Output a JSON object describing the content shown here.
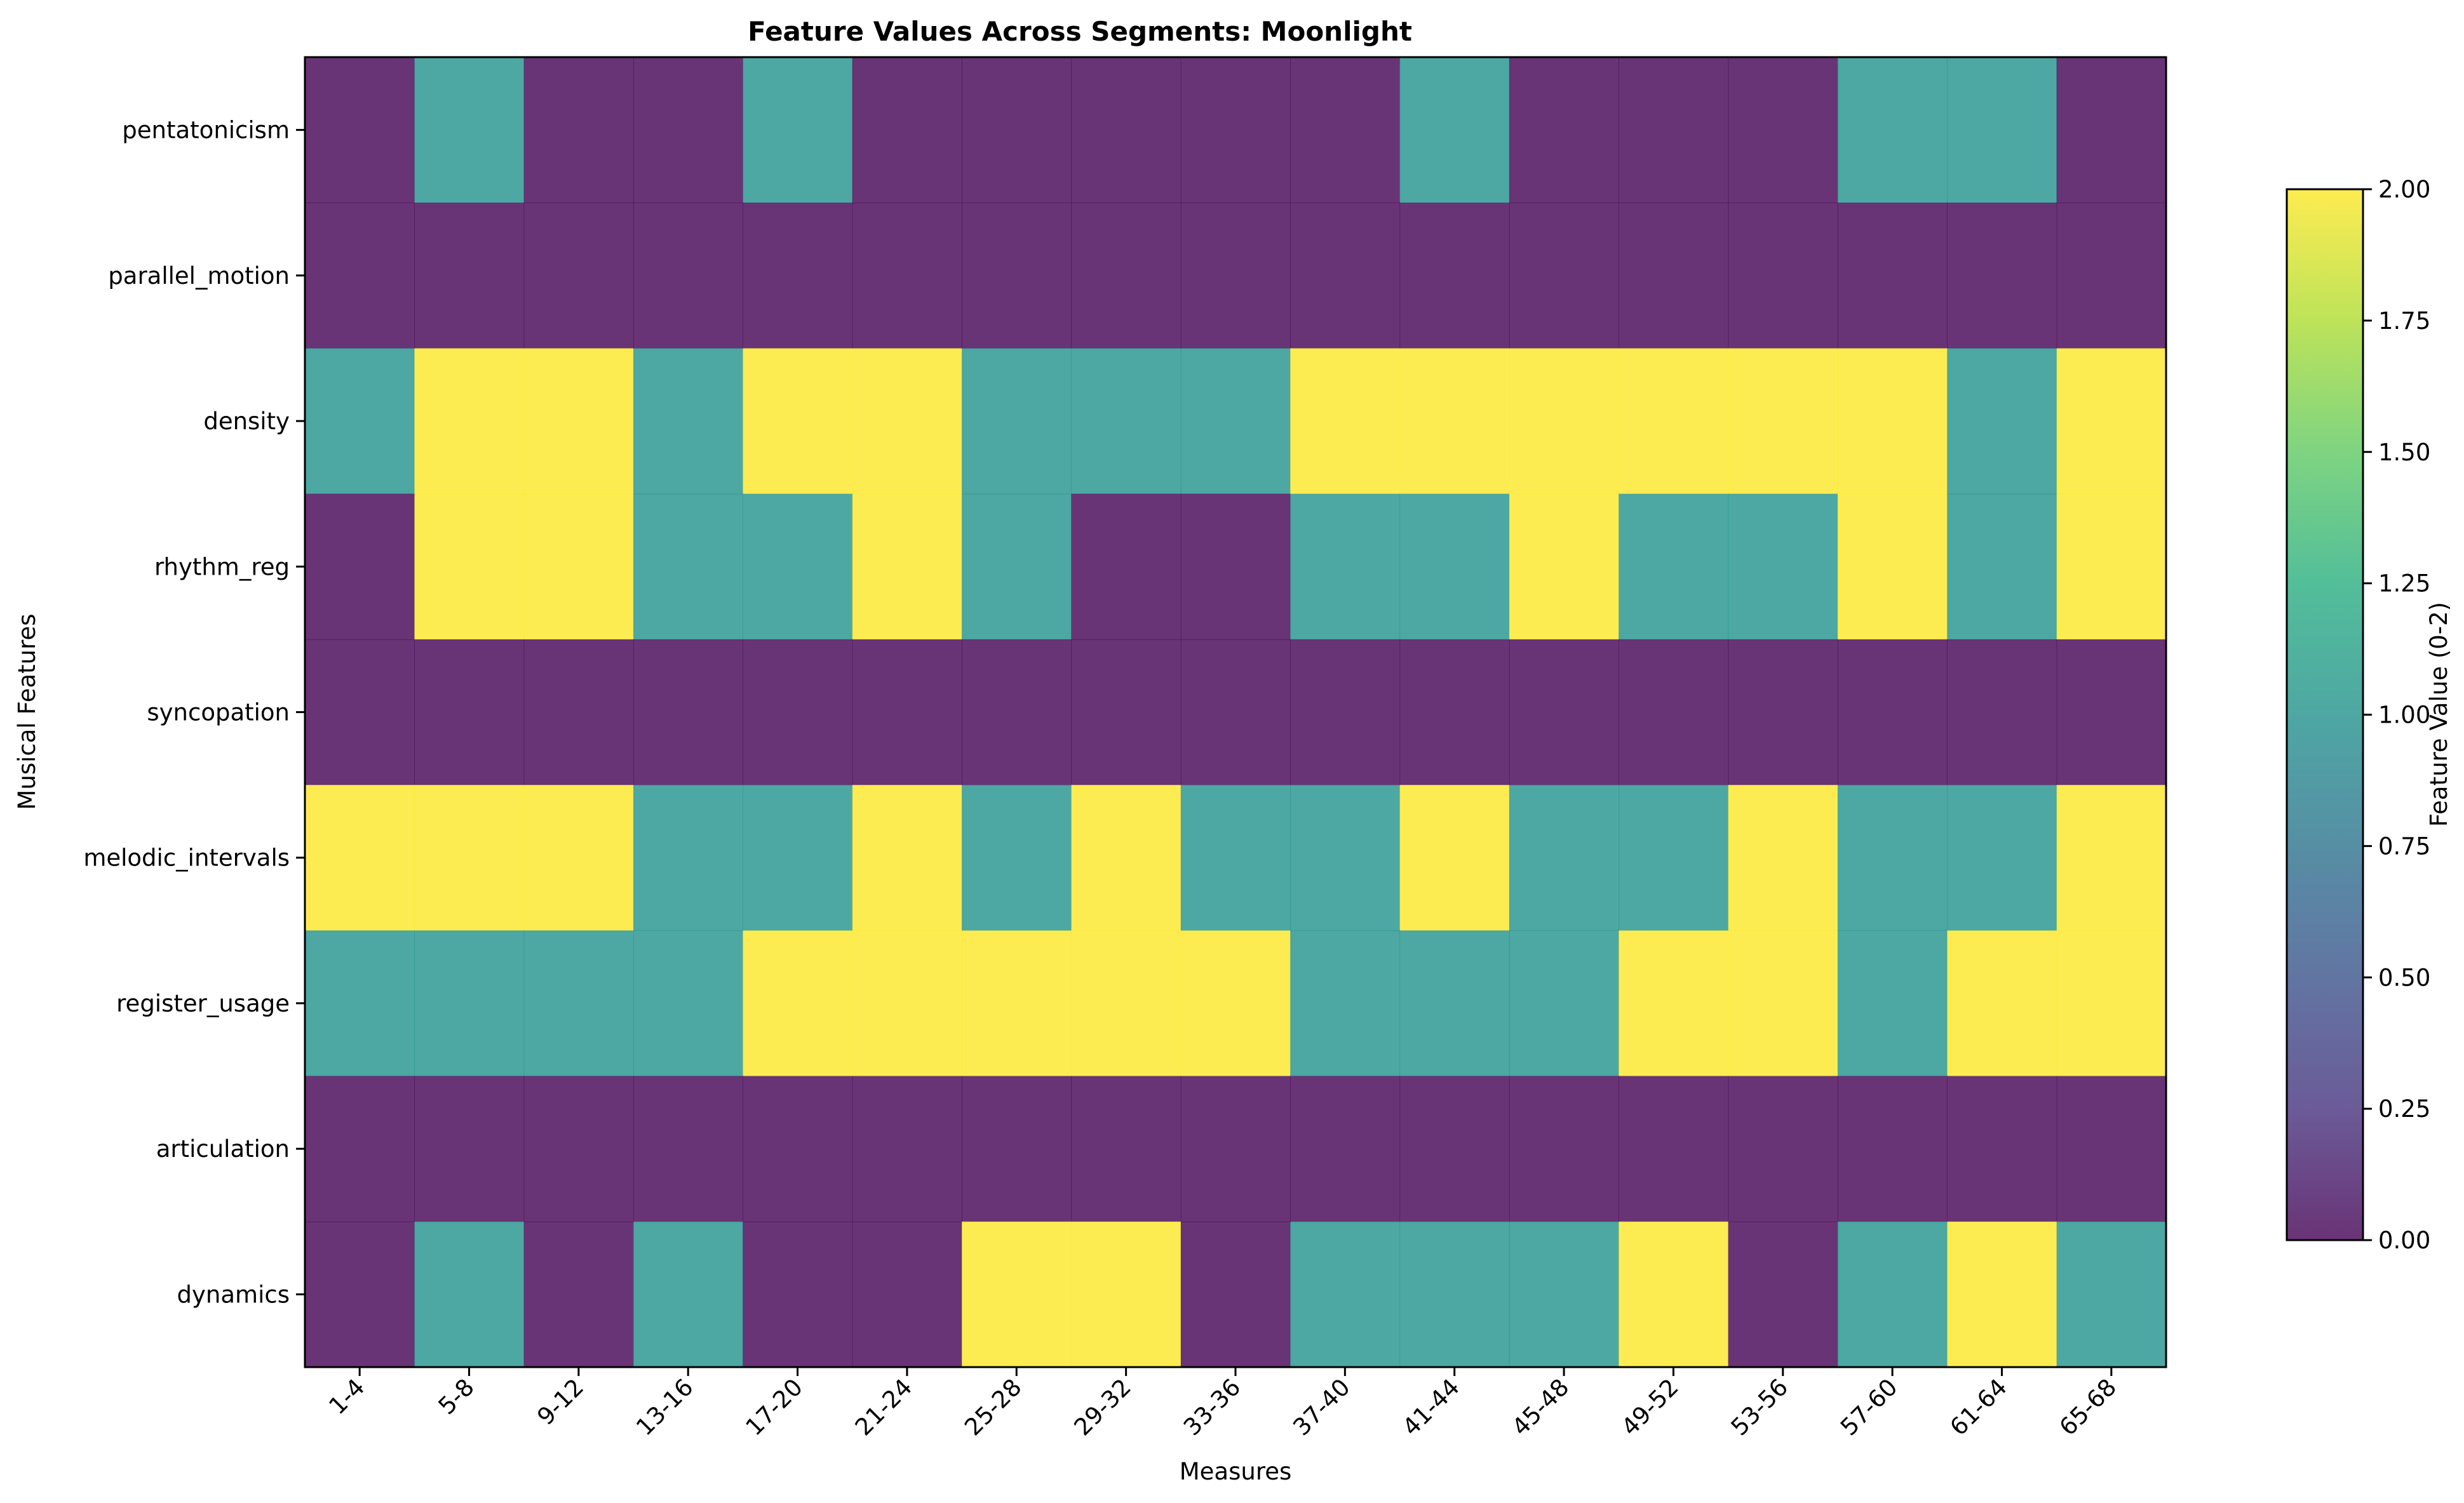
{
  "chart_data": {
    "type": "heatmap",
    "title": "Feature Values Across Segments: Moonlight",
    "xlabel": "Measures",
    "ylabel": "Musical Features",
    "x_categories": [
      "1-4",
      "5-8",
      "9-12",
      "13-16",
      "17-20",
      "21-24",
      "25-28",
      "29-32",
      "33-36",
      "37-40",
      "41-44",
      "45-48",
      "49-52",
      "53-56",
      "57-60",
      "61-64",
      "65-68"
    ],
    "y_categories": [
      "pentatonicism",
      "parallel_motion",
      "density",
      "rhythm_reg",
      "syncopation",
      "melodic_intervals",
      "register_usage",
      "articulation",
      "dynamics"
    ],
    "values": [
      [
        0,
        1,
        0,
        0,
        1,
        0,
        0,
        0,
        0,
        0,
        1,
        0,
        0,
        0,
        1,
        1,
        0
      ],
      [
        0,
        0,
        0,
        0,
        0,
        0,
        0,
        0,
        0,
        0,
        0,
        0,
        0,
        0,
        0,
        0,
        0
      ],
      [
        1,
        2,
        2,
        1,
        2,
        2,
        1,
        1,
        1,
        2,
        2,
        2,
        2,
        2,
        2,
        1,
        2
      ],
      [
        0,
        2,
        2,
        1,
        1,
        2,
        1,
        0,
        0,
        1,
        1,
        2,
        1,
        1,
        2,
        1,
        2
      ],
      [
        0,
        0,
        0,
        0,
        0,
        0,
        0,
        0,
        0,
        0,
        0,
        0,
        0,
        0,
        0,
        0,
        0
      ],
      [
        2,
        2,
        2,
        1,
        1,
        2,
        1,
        2,
        1,
        1,
        2,
        1,
        1,
        2,
        1,
        1,
        2
      ],
      [
        1,
        1,
        1,
        1,
        2,
        2,
        2,
        2,
        2,
        1,
        1,
        1,
        2,
        2,
        1,
        2,
        2
      ],
      [
        0,
        0,
        0,
        0,
        0,
        0,
        0,
        0,
        0,
        0,
        0,
        0,
        0,
        0,
        0,
        0,
        0
      ],
      [
        0,
        1,
        0,
        1,
        0,
        0,
        2,
        2,
        0,
        1,
        1,
        1,
        2,
        0,
        1,
        2,
        1
      ]
    ],
    "colormap": "viridis",
    "cell_alpha": 0.8,
    "vmin": 0,
    "vmax": 2,
    "colorbar": {
      "label": "Feature Value (0-2)",
      "ticks": [
        0,
        0.25,
        0.5,
        0.75,
        1.0,
        1.25,
        1.5,
        1.75,
        2.0
      ],
      "tick_labels": [
        "0.00",
        "0.25",
        "0.50",
        "0.75",
        "1.00",
        "1.25",
        "1.50",
        "1.75",
        "2.00"
      ]
    },
    "grid": false
  }
}
